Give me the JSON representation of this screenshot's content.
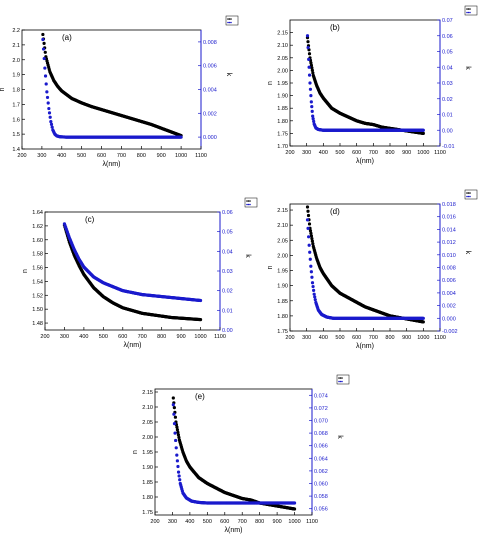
{
  "chart_data": [
    {
      "type": "line",
      "panel_label": "(a)",
      "xlabel": "λ(nm)",
      "ylabel_left": "n",
      "ylabel_right": "k",
      "xlim": [
        200,
        1100
      ],
      "x_ticks": [
        "200",
        "300",
        "400",
        "500",
        "600",
        "700",
        "800",
        "900",
        "1000",
        "1100"
      ],
      "y_left_lim": [
        1.4,
        2.2
      ],
      "y_left_ticks": [
        "1.4",
        "1.5",
        "1.6",
        "1.7",
        "1.8",
        "1.9",
        "2.0",
        "2.1",
        "2.2"
      ],
      "y_right_lim": [
        -0.001,
        0.009
      ],
      "y_right_ticks": [
        "0.000",
        "0.002",
        "0.004",
        "0.006",
        "0.008"
      ],
      "legend_placement": "top-right",
      "series": [
        {
          "axis": "left",
          "color": "#000000",
          "x": [
            305,
            320,
            340,
            360,
            380,
            400,
            450,
            500,
            550,
            600,
            650,
            700,
            750,
            800,
            850,
            900,
            950,
            1000
          ],
          "values": [
            2.17,
            2.02,
            1.92,
            1.86,
            1.82,
            1.79,
            1.74,
            1.71,
            1.685,
            1.665,
            1.645,
            1.625,
            1.605,
            1.585,
            1.565,
            1.54,
            1.515,
            1.49
          ]
        },
        {
          "axis": "right",
          "color": "#1a1acc",
          "x": [
            305,
            315,
            325,
            335,
            345,
            355,
            365,
            375,
            390,
            420,
            500,
            600,
            700,
            800,
            900,
            1000
          ],
          "values": [
            0.0082,
            0.0058,
            0.0038,
            0.0024,
            0.0013,
            0.0006,
            0.00025,
            0.0001,
            3e-05,
            0.0,
            0.0,
            0.0,
            0.0,
            0.0,
            0.0,
            0.0
          ]
        }
      ]
    },
    {
      "type": "line",
      "panel_label": "(b)",
      "xlabel": "λ(nm)",
      "ylabel_left": "n",
      "ylabel_right": "k",
      "xlim": [
        200,
        1100
      ],
      "x_ticks": [
        "200",
        "300",
        "400",
        "500",
        "600",
        "700",
        "800",
        "900",
        "1000",
        "1100"
      ],
      "y_left_lim": [
        1.7,
        2.2
      ],
      "y_left_ticks": [
        "1.70",
        "1.75",
        "1.80",
        "1.85",
        "1.90",
        "1.95",
        "2.00",
        "2.05",
        "2.10",
        "2.15"
      ],
      "y_right_lim": [
        -0.01,
        0.07
      ],
      "y_right_ticks": [
        "-0.01",
        "0.00",
        "0.01",
        "0.02",
        "0.03",
        "0.04",
        "0.05",
        "0.06",
        "0.07"
      ],
      "legend_placement": "top-right",
      "series": [
        {
          "axis": "left",
          "color": "#000000",
          "x": [
            305,
            320,
            340,
            360,
            380,
            400,
            450,
            500,
            550,
            600,
            650,
            700,
            750,
            800,
            850,
            900,
            950,
            1000
          ],
          "values": [
            2.13,
            2.05,
            1.98,
            1.94,
            1.91,
            1.89,
            1.85,
            1.83,
            1.815,
            1.8,
            1.79,
            1.785,
            1.775,
            1.77,
            1.765,
            1.76,
            1.755,
            1.75
          ]
        },
        {
          "axis": "right",
          "color": "#1a1acc",
          "x": [
            305,
            312,
            320,
            328,
            336,
            345,
            355,
            370,
            400,
            500,
            600,
            700,
            800,
            900,
            1000
          ],
          "values": [
            0.06,
            0.045,
            0.03,
            0.018,
            0.009,
            0.004,
            0.0015,
            0.0005,
            0.0,
            0.0,
            0.0,
            0.0,
            0.0,
            0.0,
            0.0
          ]
        }
      ]
    },
    {
      "type": "line",
      "panel_label": "(c)",
      "xlabel": "λ(nm)",
      "ylabel_left": "n",
      "ylabel_right": "k",
      "xlim": [
        200,
        1100
      ],
      "x_ticks": [
        "200",
        "300",
        "400",
        "500",
        "600",
        "700",
        "800",
        "900",
        "1000",
        "1100"
      ],
      "y_left_lim": [
        1.47,
        1.64
      ],
      "y_left_ticks": [
        "1.48",
        "1.50",
        "1.52",
        "1.54",
        "1.56",
        "1.58",
        "1.60",
        "1.62",
        "1.64"
      ],
      "y_right_lim": [
        0.0,
        0.06
      ],
      "y_right_ticks": [
        "0.00",
        "0.01",
        "0.02",
        "0.03",
        "0.04",
        "0.05",
        "0.06"
      ],
      "legend_placement": "top-right",
      "series": [
        {
          "axis": "left",
          "color": "#000000",
          "x": [
            300,
            325,
            350,
            375,
            400,
            450,
            500,
            550,
            600,
            650,
            700,
            750,
            800,
            850,
            900,
            950,
            1000
          ],
          "values": [
            1.621,
            1.597,
            1.578,
            1.563,
            1.55,
            1.531,
            1.518,
            1.509,
            1.502,
            1.498,
            1.494,
            1.492,
            1.49,
            1.488,
            1.487,
            1.486,
            1.485
          ]
        },
        {
          "axis": "right",
          "color": "#1a1acc",
          "x": [
            300,
            325,
            350,
            375,
            400,
            450,
            500,
            550,
            600,
            650,
            700,
            750,
            800,
            850,
            900,
            950,
            1000
          ],
          "values": [
            0.054,
            0.047,
            0.041,
            0.036,
            0.032,
            0.027,
            0.024,
            0.022,
            0.02,
            0.019,
            0.018,
            0.0175,
            0.017,
            0.0165,
            0.016,
            0.0155,
            0.015
          ]
        }
      ]
    },
    {
      "type": "line",
      "panel_label": "(d)",
      "xlabel": "λ(nm)",
      "ylabel_left": "n",
      "ylabel_right": "k",
      "xlim": [
        200,
        1100
      ],
      "x_ticks": [
        "200",
        "300",
        "400",
        "500",
        "600",
        "700",
        "800",
        "900",
        "1000",
        "1100"
      ],
      "y_left_lim": [
        1.75,
        2.17
      ],
      "y_left_ticks": [
        "1.75",
        "1.80",
        "1.85",
        "1.90",
        "1.95",
        "2.00",
        "2.05",
        "2.10",
        "2.15"
      ],
      "y_right_lim": [
        -0.002,
        0.018
      ],
      "y_right_ticks": [
        "-0.002",
        "0.000",
        "0.002",
        "0.004",
        "0.006",
        "0.008",
        "0.010",
        "0.012",
        "0.014",
        "0.016",
        "0.018"
      ],
      "legend_placement": "top-right",
      "series": [
        {
          "axis": "left",
          "color": "#000000",
          "x": [
            305,
            320,
            340,
            360,
            380,
            400,
            450,
            500,
            550,
            600,
            650,
            700,
            750,
            800,
            850,
            900,
            950,
            1000
          ],
          "values": [
            2.16,
            2.09,
            2.03,
            1.99,
            1.96,
            1.94,
            1.9,
            1.875,
            1.86,
            1.845,
            1.83,
            1.82,
            1.81,
            1.8,
            1.795,
            1.79,
            1.785,
            1.78
          ]
        },
        {
          "axis": "right",
          "color": "#1a1acc",
          "x": [
            305,
            315,
            325,
            335,
            345,
            355,
            370,
            390,
            420,
            460,
            500,
            600,
            700,
            800,
            900,
            1000
          ],
          "values": [
            0.0155,
            0.0115,
            0.0082,
            0.0056,
            0.0038,
            0.0025,
            0.0013,
            0.0006,
            0.0002,
            0.0,
            0.0,
            0.0,
            0.0,
            0.0,
            0.0,
            0.0
          ]
        }
      ]
    },
    {
      "type": "line",
      "panel_label": "(e)",
      "xlabel": "λ(nm)",
      "ylabel_left": "n",
      "ylabel_right": "k",
      "xlim": [
        200,
        1100
      ],
      "x_ticks": [
        "200",
        "300",
        "400",
        "500",
        "600",
        "700",
        "800",
        "900",
        "1000",
        "1100"
      ],
      "y_left_lim": [
        1.74,
        2.16
      ],
      "y_left_ticks": [
        "1.75",
        "1.80",
        "1.85",
        "1.90",
        "1.95",
        "2.00",
        "2.05",
        "2.10",
        "2.15"
      ],
      "y_right_lim": [
        0.055,
        0.075
      ],
      "y_right_ticks": [
        "0.056",
        "0.058",
        "0.060",
        "0.062",
        "0.064",
        "0.066",
        "0.068",
        "0.070",
        "0.072",
        "0.074"
      ],
      "legend_placement": "top-right",
      "series": [
        {
          "axis": "left",
          "color": "#000000",
          "x": [
            305,
            320,
            340,
            360,
            380,
            400,
            450,
            500,
            550,
            600,
            650,
            700,
            750,
            800,
            850,
            900,
            950,
            1000
          ],
          "values": [
            2.13,
            2.05,
            1.99,
            1.95,
            1.92,
            1.9,
            1.865,
            1.845,
            1.83,
            1.815,
            1.805,
            1.795,
            1.79,
            1.78,
            1.775,
            1.77,
            1.765,
            1.76
          ]
        },
        {
          "axis": "right",
          "color": "#1a1acc",
          "x": [
            305,
            315,
            325,
            335,
            345,
            360,
            380,
            410,
            450,
            500,
            600,
            700,
            800,
            900,
            1000
          ],
          "values": [
            0.0725,
            0.068,
            0.0645,
            0.0618,
            0.06,
            0.0585,
            0.0577,
            0.0572,
            0.057,
            0.0569,
            0.0569,
            0.0569,
            0.0569,
            0.0569,
            0.0569
          ]
        }
      ]
    }
  ]
}
